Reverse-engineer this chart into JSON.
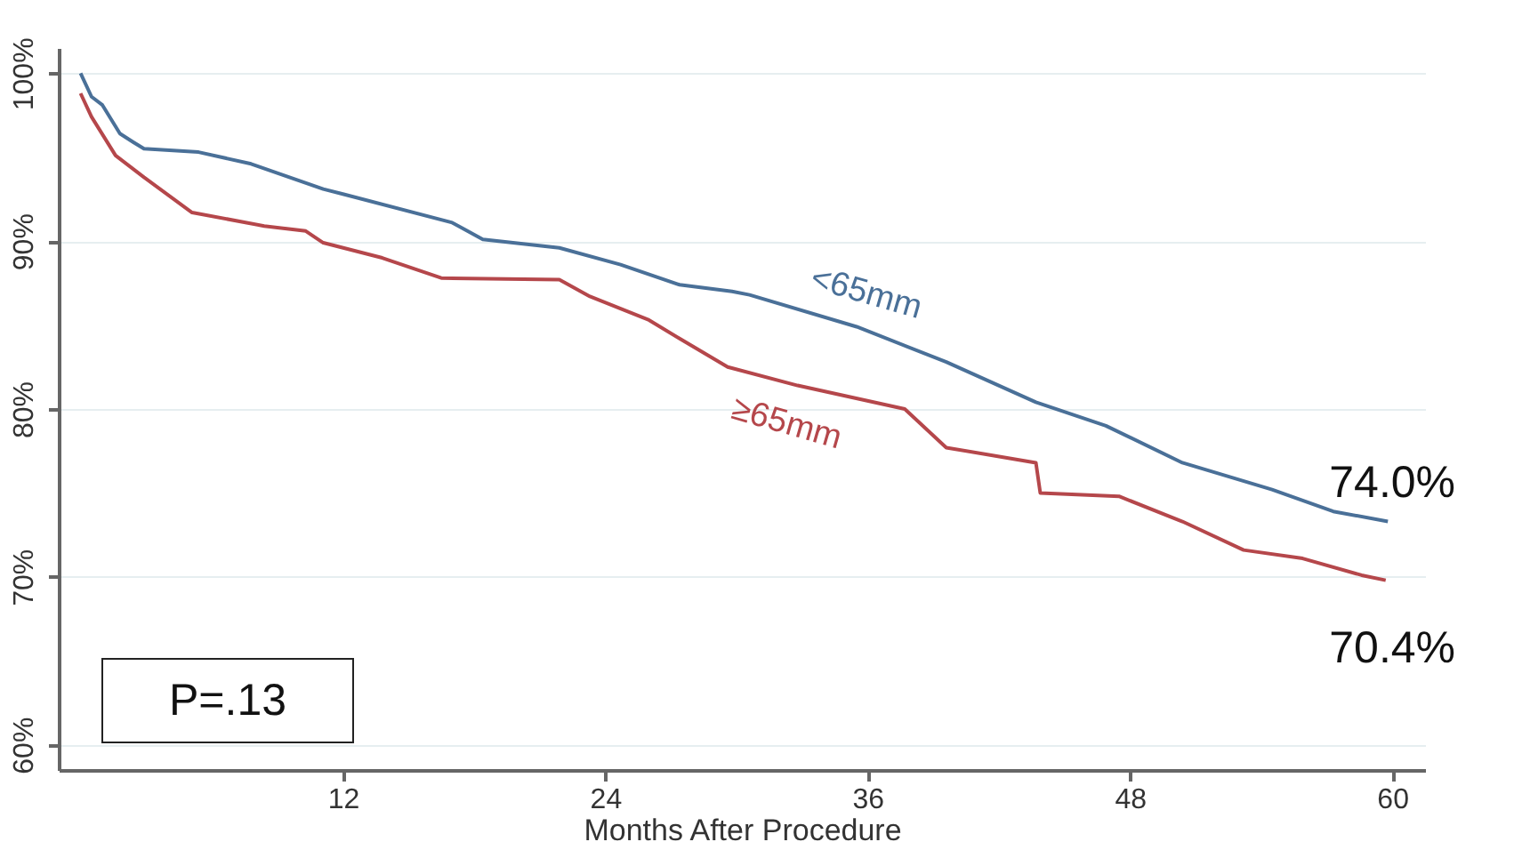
{
  "chart_data": {
    "type": "line",
    "xlabel": "Months After Procedure",
    "xlim": [
      -1,
      61.5
    ],
    "xticks": [
      12,
      24,
      36,
      48,
      60
    ],
    "ylim": [
      58.5,
      101.5
    ],
    "yticks": [
      {
        "value": 60,
        "label": "60%"
      },
      {
        "value": 70,
        "label": "70%"
      },
      {
        "value": 80,
        "label": "80%"
      },
      {
        "value": 90,
        "label": "90%"
      },
      {
        "value": 100,
        "label": "100%"
      }
    ],
    "grid": "y",
    "series": [
      {
        "name": "<65mm",
        "color": "#4a7098",
        "x": [
          0,
          0.5,
          1,
          1.8,
          2.4,
          2.9,
          5.4,
          7.8,
          11.1,
          12,
          17,
          18.4,
          21.9,
          24.7,
          27.4,
          29.8,
          30.6,
          35.5,
          39.6,
          43.7,
          46.9,
          50.4,
          54.5,
          57.3,
          59.8
        ],
        "values": [
          100,
          98.6,
          98.1,
          96.4,
          95.9,
          95.5,
          95.3,
          94.6,
          93.1,
          92.8,
          91.1,
          90.1,
          89.6,
          88.6,
          87.4,
          87.0,
          86.8,
          84.9,
          82.8,
          80.4,
          79.0,
          76.8,
          75.2,
          73.9,
          73.3
        ]
      },
      {
        "name": "≥65mm",
        "color": "#b5474b",
        "x": [
          0,
          0.5,
          1.6,
          2.9,
          5.1,
          8.4,
          10.3,
          11.1,
          13.8,
          16.5,
          21.9,
          23.3,
          26,
          27.4,
          29.6,
          32.8,
          37.7,
          39.6,
          43.7,
          43.9,
          47.5,
          50.4,
          53.2,
          55.9,
          58.6,
          59.7
        ],
        "values": [
          98.8,
          97.4,
          95.1,
          93.8,
          91.7,
          90.9,
          90.6,
          89.9,
          89.0,
          87.8,
          87.7,
          86.7,
          85.3,
          84.2,
          82.5,
          81.4,
          80.0,
          77.7,
          76.8,
          75.0,
          74.8,
          73.3,
          71.6,
          71.1,
          70.1,
          69.8
        ]
      }
    ],
    "annotations": [
      {
        "text": "74.0%",
        "x": 60,
        "y": 73.3
      },
      {
        "text": "70.4%",
        "x": 60,
        "y": 69.8
      },
      "P=.13"
    ]
  }
}
